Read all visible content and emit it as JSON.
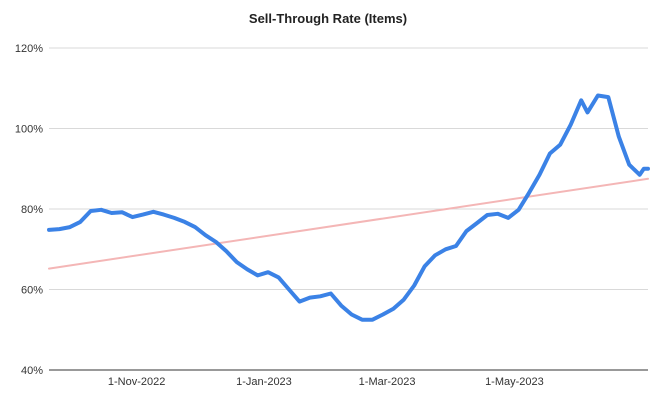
{
  "chart_data": {
    "type": "line",
    "title": "Sell-Through Rate (Items)",
    "xlabel": "",
    "ylabel": "",
    "x_ticks": [
      "1-Nov-2022",
      "1-Jan-2023",
      "1-Mar-2023",
      "1-May-2023"
    ],
    "x_tick_dates": [
      "2022-11-01",
      "2023-01-01",
      "2023-03-01",
      "2023-05-01"
    ],
    "xlim": [
      "2022-09-20",
      "2023-07-04"
    ],
    "y_ticks": [
      "40%",
      "60%",
      "80%",
      "100%",
      "120%"
    ],
    "ylim": [
      40,
      120
    ],
    "grid": "horizontal",
    "legend": "none",
    "series": [
      {
        "color": "#3b82e6",
        "points": [
          [
            "2022-09-20",
            74.8
          ],
          [
            "2022-09-25",
            75.0
          ],
          [
            "2022-09-30",
            75.5
          ],
          [
            "2022-10-05",
            76.8
          ],
          [
            "2022-10-10",
            79.5
          ],
          [
            "2022-10-15",
            79.8
          ],
          [
            "2022-10-20",
            79.0
          ],
          [
            "2022-10-25",
            79.2
          ],
          [
            "2022-10-30",
            78.0
          ],
          [
            "2022-11-04",
            78.6
          ],
          [
            "2022-11-09",
            79.3
          ],
          [
            "2022-11-14",
            78.6
          ],
          [
            "2022-11-19",
            77.8
          ],
          [
            "2022-11-24",
            76.8
          ],
          [
            "2022-11-29",
            75.5
          ],
          [
            "2022-12-04",
            73.5
          ],
          [
            "2022-12-09",
            71.8
          ],
          [
            "2022-12-14",
            69.5
          ],
          [
            "2022-12-19",
            66.8
          ],
          [
            "2022-12-24",
            65.0
          ],
          [
            "2022-12-29",
            63.5
          ],
          [
            "2023-01-03",
            64.3
          ],
          [
            "2023-01-08",
            63.0
          ],
          [
            "2023-01-13",
            60.0
          ],
          [
            "2023-01-18",
            57.0
          ],
          [
            "2023-01-23",
            58.0
          ],
          [
            "2023-01-28",
            58.3
          ],
          [
            "2023-02-02",
            59.0
          ],
          [
            "2023-02-07",
            56.0
          ],
          [
            "2023-02-12",
            53.8
          ],
          [
            "2023-02-17",
            52.5
          ],
          [
            "2023-02-22",
            52.5
          ],
          [
            "2023-02-27",
            53.8
          ],
          [
            "2023-03-04",
            55.2
          ],
          [
            "2023-03-09",
            57.5
          ],
          [
            "2023-03-14",
            61.0
          ],
          [
            "2023-03-19",
            65.8
          ],
          [
            "2023-03-24",
            68.5
          ],
          [
            "2023-03-29",
            70.0
          ],
          [
            "2023-04-03",
            70.8
          ],
          [
            "2023-04-08",
            74.5
          ],
          [
            "2023-04-13",
            76.5
          ],
          [
            "2023-04-18",
            78.5
          ],
          [
            "2023-04-23",
            78.8
          ],
          [
            "2023-04-28",
            77.8
          ],
          [
            "2023-05-03",
            79.8
          ],
          [
            "2023-05-08",
            84.0
          ],
          [
            "2023-05-13",
            88.5
          ],
          [
            "2023-05-18",
            93.8
          ],
          [
            "2023-05-23",
            96.0
          ],
          [
            "2023-05-28",
            101.0
          ],
          [
            "2023-06-02",
            107.0
          ],
          [
            "2023-06-05",
            104.0
          ],
          [
            "2023-06-10",
            108.2
          ],
          [
            "2023-06-15",
            107.8
          ],
          [
            "2023-06-20",
            98.0
          ],
          [
            "2023-06-25",
            91.0
          ],
          [
            "2023-06-30",
            88.5
          ],
          [
            "2023-07-02",
            90.0
          ],
          [
            "2023-07-04",
            90.0
          ]
        ]
      },
      {
        "type": "trendline",
        "color": "#f4b6b6",
        "points": [
          [
            "2022-09-20",
            65.2
          ],
          [
            "2023-07-04",
            87.5
          ]
        ]
      }
    ]
  }
}
